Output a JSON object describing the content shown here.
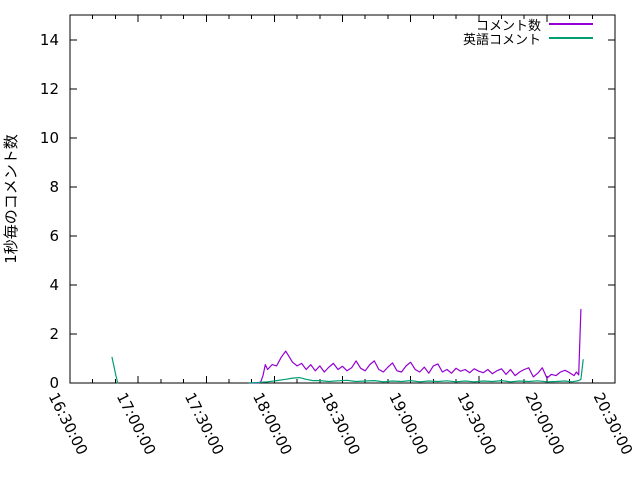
{
  "accent_colors": {
    "series1": "#9400d3",
    "series2": "#009e73",
    "axis": "#000000",
    "background": "#ffffff"
  },
  "chart_data": {
    "type": "line",
    "title": "",
    "xlabel": "",
    "ylabel": "1秒毎のコメント数",
    "grid": false,
    "legend_position": "top-right-inside",
    "x_axis": {
      "kind": "time",
      "start_label": "16:30:00",
      "tick_labels": [
        "16:30:00",
        "17:00:00",
        "17:30:00",
        "18:00:00",
        "18:30:00",
        "19:00:00",
        "19:30:00",
        "20:00:00",
        "20:30:00"
      ],
      "tick_minutes": [
        0,
        30,
        60,
        90,
        120,
        150,
        180,
        210,
        240
      ],
      "minor_tick_step_minutes": 10,
      "range_minutes": [
        0,
        240
      ],
      "label_rotation_deg": 63
    },
    "y_axis": {
      "ticks": [
        0,
        2,
        4,
        6,
        8,
        10,
        12,
        14
      ],
      "range": [
        0,
        15
      ]
    },
    "series": [
      {
        "name": "コメント数",
        "color": "#9400d3",
        "segments": [
          [
            [
              79,
              0
            ],
            [
              83,
              0
            ],
            [
              84,
              0.05
            ],
            [
              85,
              0.3
            ],
            [
              86,
              0.75
            ],
            [
              87,
              0.55
            ],
            [
              89,
              0.75
            ],
            [
              91,
              0.7
            ],
            [
              93,
              1.05
            ],
            [
              95,
              1.3
            ],
            [
              96,
              1.15
            ],
            [
              98,
              0.85
            ],
            [
              100,
              0.7
            ],
            [
              102,
              0.8
            ],
            [
              104,
              0.55
            ],
            [
              106,
              0.75
            ],
            [
              108,
              0.5
            ],
            [
              110,
              0.7
            ],
            [
              112,
              0.45
            ],
            [
              114,
              0.65
            ],
            [
              116,
              0.8
            ],
            [
              118,
              0.55
            ],
            [
              120,
              0.68
            ],
            [
              122,
              0.5
            ],
            [
              124,
              0.62
            ],
            [
              126,
              0.9
            ],
            [
              128,
              0.6
            ],
            [
              130,
              0.5
            ],
            [
              132,
              0.75
            ],
            [
              134,
              0.9
            ],
            [
              136,
              0.55
            ],
            [
              138,
              0.45
            ],
            [
              140,
              0.65
            ],
            [
              142,
              0.82
            ],
            [
              144,
              0.5
            ],
            [
              146,
              0.45
            ],
            [
              148,
              0.7
            ],
            [
              150,
              0.85
            ],
            [
              152,
              0.55
            ],
            [
              154,
              0.45
            ],
            [
              156,
              0.65
            ],
            [
              158,
              0.4
            ],
            [
              160,
              0.7
            ],
            [
              162,
              0.78
            ],
            [
              164,
              0.45
            ],
            [
              166,
              0.55
            ],
            [
              168,
              0.4
            ],
            [
              170,
              0.6
            ],
            [
              172,
              0.48
            ],
            [
              174,
              0.55
            ],
            [
              176,
              0.42
            ],
            [
              178,
              0.58
            ],
            [
              180,
              0.48
            ],
            [
              182,
              0.42
            ],
            [
              184,
              0.55
            ],
            [
              186,
              0.38
            ],
            [
              188,
              0.5
            ],
            [
              190,
              0.58
            ],
            [
              192,
              0.35
            ],
            [
              194,
              0.55
            ],
            [
              196,
              0.3
            ],
            [
              198,
              0.45
            ],
            [
              200,
              0.55
            ],
            [
              202,
              0.62
            ],
            [
              204,
              0.25
            ],
            [
              206,
              0.4
            ],
            [
              208,
              0.62
            ],
            [
              210,
              0.2
            ],
            [
              212,
              0.35
            ],
            [
              214,
              0.3
            ],
            [
              216,
              0.45
            ],
            [
              218,
              0.52
            ],
            [
              220,
              0.42
            ],
            [
              222,
              0.3
            ],
            [
              223,
              0.45
            ],
            [
              224,
              0.33
            ],
            [
              225,
              3.0
            ]
          ]
        ]
      },
      {
        "name": "英語コメント",
        "color": "#009e73",
        "segments": [
          [
            [
              18.5,
              1.05
            ],
            [
              20,
              0.4
            ],
            [
              21,
              0
            ]
          ],
          [
            [
              79,
              0
            ],
            [
              83,
              0.02
            ],
            [
              87,
              0.05
            ],
            [
              91,
              0.1
            ],
            [
              95,
              0.15
            ],
            [
              98,
              0.2
            ],
            [
              101,
              0.22
            ],
            [
              104,
              0.15
            ],
            [
              107,
              0.1
            ],
            [
              110,
              0.1
            ],
            [
              114,
              0.06
            ],
            [
              118,
              0.09
            ],
            [
              122,
              0.11
            ],
            [
              126,
              0.06
            ],
            [
              130,
              0.08
            ],
            [
              134,
              0.1
            ],
            [
              138,
              0.05
            ],
            [
              142,
              0.08
            ],
            [
              146,
              0.06
            ],
            [
              150,
              0.1
            ],
            [
              154,
              0.05
            ],
            [
              158,
              0.08
            ],
            [
              162,
              0.06
            ],
            [
              166,
              0.09
            ],
            [
              170,
              0.05
            ],
            [
              174,
              0.08
            ],
            [
              178,
              0.05
            ],
            [
              182,
              0.08
            ],
            [
              186,
              0.06
            ],
            [
              190,
              0.1
            ],
            [
              194,
              0.05
            ],
            [
              198,
              0.08
            ],
            [
              202,
              0.06
            ],
            [
              206,
              0.09
            ],
            [
              210,
              0.05
            ],
            [
              214,
              0.06
            ],
            [
              218,
              0.08
            ],
            [
              221,
              0.05
            ],
            [
              224,
              0.1
            ],
            [
              225,
              0.15
            ],
            [
              226,
              0.95
            ]
          ]
        ]
      }
    ]
  }
}
